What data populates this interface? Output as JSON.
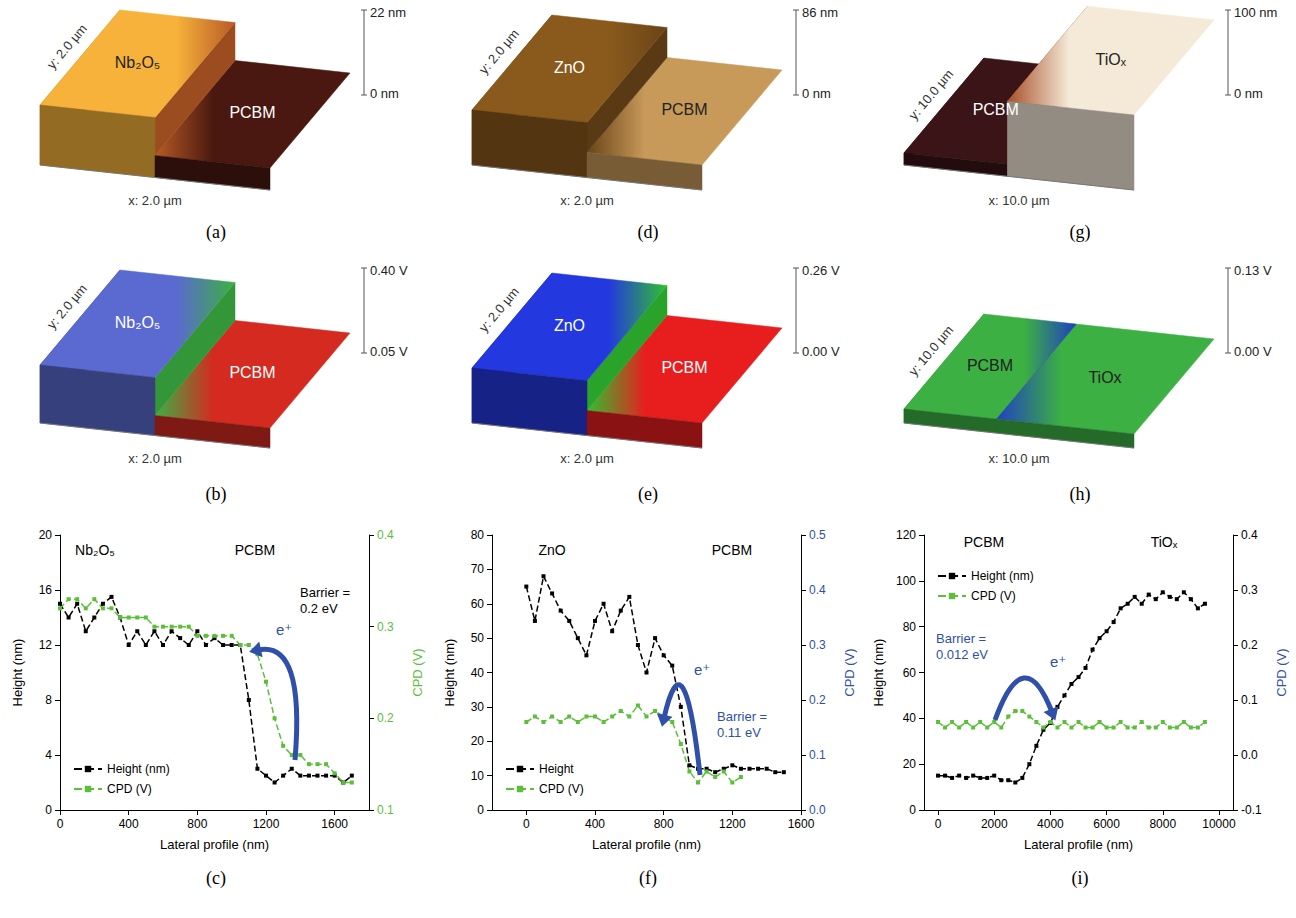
{
  "surfaces": [
    {
      "panel_label": "(a)",
      "materials": [
        "Nb₂O₅",
        "PCBM"
      ],
      "z_top": "22 nm",
      "z_bottom": "0 nm",
      "x_axis": "x: 2.0 µm",
      "y_axis": "y: 2.0 µm",
      "colors": [
        "#f6b23a",
        "#b85a25",
        "#4a1810"
      ]
    },
    {
      "panel_label": "(d)",
      "materials": [
        "ZnO",
        "PCBM"
      ],
      "z_top": "86 nm",
      "z_bottom": "0 nm",
      "x_axis": "x: 2.0 µm",
      "y_axis": "y: 2.0 µm",
      "colors": [
        "#8a5a1c",
        "#6a4418",
        "#c89a5a"
      ]
    },
    {
      "panel_label": "(g)",
      "materials": [
        "PCBM",
        "TiOₓ"
      ],
      "z_top": "100 nm",
      "z_bottom": "0 nm",
      "x_axis": "x: 10.0 µm",
      "y_axis": "y: 10.0 µm",
      "colors": [
        "#3a1416",
        "#a8502a",
        "#f5ead8"
      ]
    },
    {
      "panel_label": "(b)",
      "materials": [
        "Nb₂O₅",
        "PCBM"
      ],
      "z_top": "0.40 V",
      "z_bottom": "0.05 V",
      "x_axis": "x: 2.0 µm",
      "y_axis": "y: 2.0 µm",
      "colors": [
        "#5a6ad0",
        "#3cb043",
        "#d42a20"
      ]
    },
    {
      "panel_label": "(e)",
      "materials": [
        "ZnO",
        "PCBM"
      ],
      "z_top": "0.26 V",
      "z_bottom": "0.00 V",
      "x_axis": "x: 2.0 µm",
      "y_axis": "y: 2.0 µm",
      "colors": [
        "#2438e0",
        "#30c030",
        "#e81e1e"
      ]
    },
    {
      "panel_label": "(h)",
      "materials": [
        "PCBM",
        "TiOx"
      ],
      "z_top": "0.13 V",
      "z_bottom": "0.00 V",
      "x_axis": "x: 10.0 µm",
      "y_axis": "y: 10.0 µm",
      "colors": [
        "#3cb043",
        "#2040c0",
        "#3cb043"
      ]
    }
  ],
  "chart_data": [
    {
      "type": "line",
      "panel_label": "(c)",
      "x_label": "Lateral profile (nm)",
      "y_label": "Height (nm)",
      "y2_label": "CPD (V)",
      "x": [
        0,
        50,
        100,
        150,
        200,
        250,
        300,
        350,
        400,
        450,
        500,
        550,
        600,
        650,
        700,
        750,
        800,
        850,
        900,
        950,
        1000,
        1050,
        1100,
        1150,
        1200,
        1250,
        1300,
        1350,
        1400,
        1450,
        1500,
        1550,
        1600,
        1650,
        1700
      ],
      "series": [
        {
          "name": "Height (nm)",
          "color": "#000000",
          "marker": "square",
          "line_style": "dashed",
          "axis": "y",
          "values": [
            15,
            14,
            15,
            13,
            14,
            15,
            15.5,
            14,
            12,
            13,
            12,
            13,
            12,
            13,
            12.5,
            12,
            13,
            12,
            12.5,
            12,
            12,
            12,
            8,
            3,
            2.5,
            2,
            2.5,
            3,
            2.5,
            2.5,
            2.5,
            2.5,
            2.5,
            2,
            2.5
          ]
        },
        {
          "name": "CPD (V)",
          "color": "#5cbf3a",
          "marker": "square",
          "line_style": "dashed",
          "axis": "y2",
          "values": [
            0.32,
            0.33,
            0.33,
            0.32,
            0.33,
            0.32,
            0.32,
            0.31,
            0.31,
            0.31,
            0.31,
            0.3,
            0.3,
            0.3,
            0.3,
            0.3,
            0.29,
            0.29,
            0.29,
            0.29,
            0.29,
            0.28,
            0.28,
            0.27,
            0.24,
            0.2,
            0.17,
            0.16,
            0.16,
            0.15,
            0.15,
            0.15,
            0.14,
            0.13,
            0.13
          ]
        }
      ],
      "xlim": [
        0,
        1800
      ],
      "xticks": [
        0,
        400,
        800,
        1200,
        1600
      ],
      "ylim": [
        0,
        20
      ],
      "yticks": [
        0,
        4,
        8,
        12,
        16,
        20
      ],
      "y2lim": [
        0.1,
        0.4
      ],
      "y2ticks": [
        0.1,
        0.2,
        0.3,
        0.4
      ],
      "legend": "lower left",
      "grid": false,
      "annotations": {
        "left_material": "Nb₂O₅",
        "right_material": "PCBM",
        "barrier": "Barrier = 0.2 eV",
        "carrier": "e⁺"
      }
    },
    {
      "type": "line",
      "panel_label": "(f)",
      "x_label": "Lateral profile (nm)",
      "y_label": "Height (nm)",
      "y2_label": "CPD (V)",
      "x": [
        0,
        50,
        100,
        150,
        200,
        250,
        300,
        350,
        400,
        450,
        500,
        550,
        600,
        650,
        700,
        750,
        800,
        850,
        900,
        950,
        1000,
        1050,
        1100,
        1150,
        1200,
        1250,
        1300,
        1350,
        1400,
        1450,
        1500
      ],
      "series": [
        {
          "name": "Height",
          "color": "#000000",
          "marker": "square",
          "line_style": "dashed",
          "axis": "y",
          "values": [
            65,
            55,
            68,
            63,
            58,
            55,
            50,
            45,
            55,
            60,
            52,
            58,
            62,
            48,
            40,
            50,
            45,
            42,
            30,
            13,
            12,
            12,
            11,
            12,
            13,
            12,
            12,
            12,
            12,
            11,
            11
          ]
        },
        {
          "name": "CPD (V)",
          "color": "#5cbf3a",
          "marker": "square",
          "line_style": "dashed",
          "axis": "y2",
          "values": [
            0.16,
            0.17,
            0.16,
            0.17,
            0.16,
            0.17,
            0.16,
            0.17,
            0.17,
            0.16,
            0.17,
            0.18,
            0.17,
            0.19,
            0.17,
            0.18,
            0.17,
            0.16,
            0.12,
            0.07,
            0.05,
            0.07,
            0.06,
            0.07,
            0.05,
            0.06,
            null,
            null,
            null,
            null,
            null
          ]
        }
      ],
      "xlim": [
        -200,
        1600
      ],
      "xticks": [
        0,
        400,
        800,
        1200,
        1600
      ],
      "ylim": [
        0,
        80
      ],
      "yticks": [
        0,
        10,
        20,
        30,
        40,
        50,
        60,
        70,
        80
      ],
      "y2lim": [
        0,
        0.5
      ],
      "y2ticks": [
        {
          "value": 0,
          "label": "0.0"
        },
        0.1,
        0.2,
        0.3,
        0.4,
        0.5
      ],
      "legend": "lower left",
      "grid": false,
      "annotations": {
        "left_material": "ZnO",
        "right_material": "PCBM",
        "barrier": "Barrier = 0.11 eV",
        "carrier": "e⁺"
      }
    },
    {
      "type": "line",
      "panel_label": "(i)",
      "x_label": "Lateral profile (nm)",
      "y_label": "Height (nm)",
      "y2_label": "CPD (V)",
      "x": [
        0,
        250,
        500,
        750,
        1000,
        1250,
        1500,
        1750,
        2000,
        2250,
        2500,
        2750,
        3000,
        3250,
        3500,
        3750,
        4000,
        4250,
        4500,
        4750,
        5000,
        5250,
        5500,
        5750,
        6000,
        6250,
        6500,
        6750,
        7000,
        7250,
        7500,
        7750,
        8000,
        8250,
        8500,
        8750,
        9000,
        9250,
        9500
      ],
      "series": [
        {
          "name": "Height (nm)",
          "color": "#000000",
          "marker": "square",
          "line_style": "dashed",
          "axis": "y",
          "values": [
            15,
            15,
            14,
            15,
            14,
            15,
            14,
            14,
            15,
            13,
            13,
            12,
            14,
            20,
            28,
            35,
            38,
            45,
            50,
            55,
            58,
            62,
            70,
            75,
            78,
            82,
            88,
            90,
            93,
            90,
            94,
            92,
            95,
            93,
            92,
            95,
            92,
            88,
            90
          ]
        },
        {
          "name": "CPD (V)",
          "color": "#5cbf3a",
          "marker": "square",
          "line_style": "dashed",
          "axis": "y2",
          "values": [
            0.06,
            0.05,
            0.06,
            0.05,
            0.06,
            0.05,
            0.06,
            0.05,
            0.06,
            0.05,
            0.07,
            0.08,
            0.08,
            0.07,
            0.06,
            0.05,
            0.06,
            0.05,
            0.06,
            0.05,
            0.06,
            0.05,
            0.05,
            0.06,
            0.05,
            0.05,
            0.06,
            0.05,
            0.05,
            0.06,
            0.05,
            0.05,
            0.06,
            0.05,
            0.05,
            0.06,
            0.05,
            0.05,
            0.06
          ]
        }
      ],
      "xlim": [
        -500,
        10500
      ],
      "xticks": [
        0,
        2000,
        4000,
        6000,
        8000,
        10000
      ],
      "ylim": [
        0,
        120
      ],
      "yticks": [
        0,
        20,
        40,
        60,
        80,
        100,
        120
      ],
      "y2lim": [
        -0.1,
        0.4
      ],
      "y2ticks": [
        -0.1,
        {
          "value": 0,
          "label": "0.0"
        },
        0.1,
        0.2,
        0.3,
        0.4
      ],
      "legend": "upper left",
      "grid": false,
      "annotations": {
        "left_material": "PCBM",
        "right_material": "TiOₓ",
        "barrier": "Barrier = 0.012 eV",
        "carrier": "e⁺"
      }
    }
  ]
}
